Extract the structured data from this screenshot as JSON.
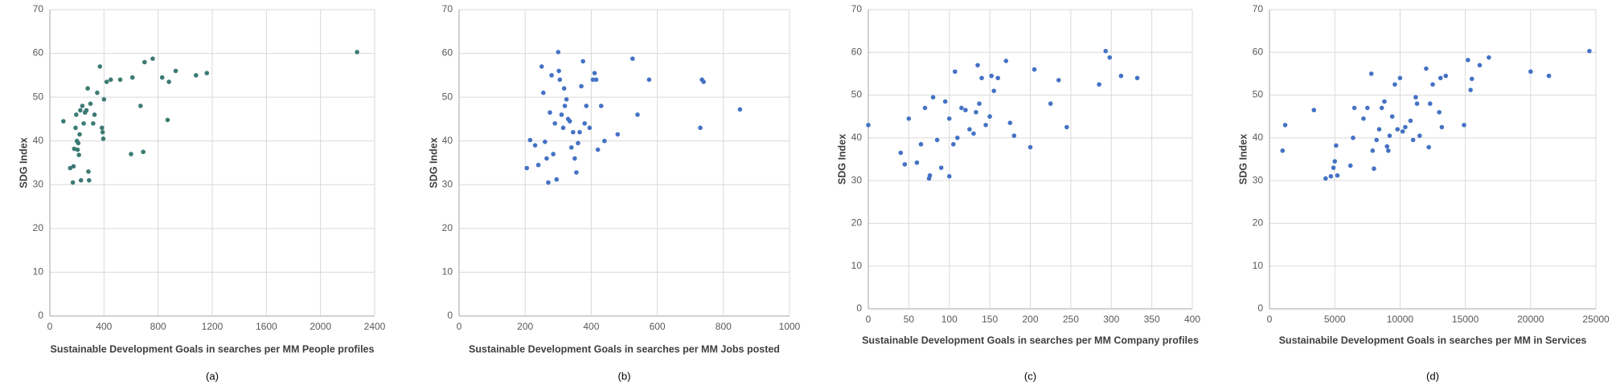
{
  "chart_data": [
    {
      "type": "scatter",
      "caption": "(a)",
      "x_label": "Sustainable Development Goals in searches per MM People profiles",
      "y_label": "SDG Index",
      "color": "#3d7a74",
      "grid": true,
      "xlim": [
        0,
        2400
      ],
      "xticks": [
        0,
        400,
        800,
        1200,
        1600,
        2000,
        2400
      ],
      "ylim": [
        0,
        70
      ],
      "yticks": [
        0,
        10,
        20,
        30,
        40,
        50,
        60,
        70
      ],
      "x": [
        100,
        150,
        170,
        175,
        180,
        190,
        195,
        200,
        205,
        210,
        215,
        220,
        225,
        230,
        240,
        250,
        260,
        270,
        280,
        285,
        290,
        300,
        320,
        330,
        350,
        370,
        385,
        390,
        395,
        400,
        420,
        450,
        520,
        600,
        610,
        670,
        690,
        700,
        760,
        830,
        870,
        880,
        930,
        1080,
        1160,
        2270
      ],
      "y": [
        44.5,
        33.8,
        30.5,
        34.2,
        38.2,
        43,
        46,
        40,
        38,
        39.5,
        36.8,
        41.5,
        47,
        31,
        48,
        44,
        46.5,
        47,
        52,
        33,
        31,
        48.5,
        44,
        46,
        51,
        57,
        43,
        42,
        40.5,
        49.5,
        53.5,
        54,
        54,
        37,
        54.5,
        48,
        37.5,
        58,
        58.8,
        54.5,
        44.8,
        53.5,
        56,
        55,
        55.5,
        60.3
      ]
    },
    {
      "type": "scatter",
      "caption": "(b)",
      "x_label": "Sustainable Development Goals in searches per MM Jobs posted",
      "y_label": "SDG Index",
      "color": "#4472c4",
      "grid": true,
      "xlim": [
        0,
        1000
      ],
      "xticks": [
        0,
        200,
        400,
        600,
        800,
        1000
      ],
      "ylim": [
        0,
        70
      ],
      "yticks": [
        0,
        10,
        20,
        30,
        40,
        50,
        60,
        70
      ],
      "x": [
        205,
        215,
        230,
        240,
        250,
        255,
        260,
        265,
        270,
        275,
        280,
        285,
        290,
        295,
        300,
        302,
        305,
        310,
        315,
        318,
        320,
        325,
        330,
        335,
        340,
        345,
        350,
        355,
        360,
        365,
        370,
        375,
        380,
        385,
        395,
        405,
        410,
        415,
        420,
        430,
        440,
        480,
        525,
        540,
        575,
        730,
        735,
        740,
        850
      ],
      "y": [
        33.8,
        40.2,
        39,
        34.5,
        57,
        51,
        39.8,
        36,
        30.5,
        46.5,
        55,
        37,
        44,
        31.2,
        60.3,
        56,
        54,
        46,
        43,
        52,
        48,
        49.5,
        45,
        44.5,
        38.5,
        42,
        36,
        32.8,
        39.5,
        42,
        52.5,
        58.2,
        44,
        48,
        43,
        54,
        55.5,
        54,
        38,
        48,
        40,
        41.5,
        58.8,
        46,
        54,
        43,
        54,
        53.5,
        47.2
      ]
    },
    {
      "type": "scatter",
      "caption": "(c)",
      "x_label": "Sustainable Development Goals in searches per MM Company profiles",
      "y_label": "SDG Index",
      "color": "#4472c4",
      "grid": true,
      "xlim": [
        0,
        400
      ],
      "xticks": [
        0,
        50,
        100,
        150,
        200,
        250,
        300,
        350,
        400
      ],
      "ylim": [
        0,
        70
      ],
      "yticks": [
        0,
        10,
        20,
        30,
        40,
        50,
        60,
        70
      ],
      "x": [
        0,
        40,
        45,
        50,
        60,
        65,
        70,
        75,
        76,
        80,
        85,
        90,
        95,
        100,
        100,
        105,
        107,
        110,
        115,
        120,
        125,
        130,
        133,
        135,
        137,
        140,
        145,
        150,
        152,
        155,
        160,
        170,
        175,
        180,
        200,
        205,
        225,
        235,
        245,
        285,
        293,
        298,
        312,
        332
      ],
      "y": [
        43,
        36.5,
        33.8,
        44.5,
        34.2,
        38.5,
        47,
        30.5,
        31.2,
        49.5,
        39.5,
        33,
        48.5,
        44.5,
        31,
        38.5,
        55.5,
        40,
        47,
        46.5,
        42,
        41,
        46,
        57,
        48,
        54,
        43,
        45,
        54.5,
        51,
        54,
        58,
        43.5,
        40.5,
        37.8,
        56,
        48,
        53.5,
        42.5,
        52.5,
        60.3,
        58.8,
        54.5,
        54
      ]
    },
    {
      "type": "scatter",
      "caption": "(d)",
      "x_label": "Sustainabile Development Goals in searches per MM in Services",
      "y_label": "SDG Index",
      "color": "#4472c4",
      "grid": true,
      "xlim": [
        0,
        25000
      ],
      "xticks": [
        0,
        5000,
        10000,
        15000,
        20000,
        25000
      ],
      "ylim": [
        0,
        70
      ],
      "yticks": [
        0,
        10,
        20,
        30,
        40,
        50,
        60,
        70
      ],
      "x": [
        1000,
        1200,
        3400,
        4300,
        4700,
        4900,
        5000,
        5100,
        5200,
        6200,
        6400,
        6500,
        7200,
        7500,
        7800,
        7900,
        8000,
        8200,
        8400,
        8600,
        8800,
        9000,
        9100,
        9200,
        9400,
        9600,
        9800,
        10000,
        10200,
        10400,
        10800,
        11000,
        11200,
        11300,
        11500,
        12000,
        12200,
        12300,
        12500,
        13000,
        13100,
        13200,
        13500,
        14900,
        15200,
        15400,
        15500,
        16100,
        16800,
        20000,
        21400,
        24500
      ],
      "y": [
        37,
        43,
        46.5,
        30.5,
        31,
        33,
        34.5,
        38.2,
        31.2,
        33.5,
        40,
        47,
        44.5,
        47,
        55,
        37,
        32.8,
        39.5,
        42,
        47,
        48.5,
        38,
        37,
        40.5,
        45,
        52.5,
        42,
        54,
        41.5,
        42.5,
        44,
        39.5,
        49.5,
        48,
        40.5,
        56.2,
        37.8,
        48,
        52.5,
        46,
        54,
        42.5,
        54.5,
        43,
        58.2,
        51.2,
        53.8,
        57,
        58.8,
        55.5,
        54.5,
        60.3
      ]
    }
  ]
}
